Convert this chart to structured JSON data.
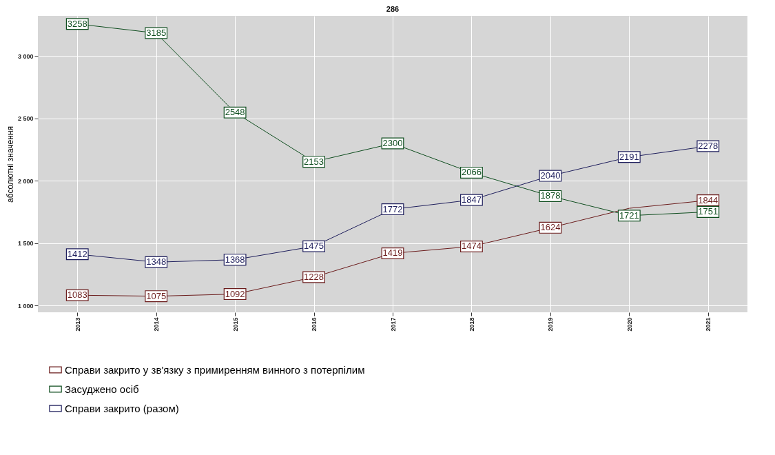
{
  "chart_data": {
    "type": "line",
    "title": "286",
    "ylabel": "абсолютні значення",
    "categories": [
      "2013",
      "2014",
      "2015",
      "2016",
      "2017",
      "2018",
      "2019",
      "2020",
      "2021"
    ],
    "series": [
      {
        "name": "Справи закрито у зв'язку з примиренням винного з потерпілим",
        "color": "#6b1c1c",
        "values": [
          1083,
          1075,
          1092,
          1228,
          1419,
          1474,
          1624,
          1780,
          1844
        ],
        "value_labels": [
          "1083",
          "1075",
          "1092",
          "1228",
          "1419",
          "1474",
          "1624",
          null,
          "1844"
        ]
      },
      {
        "name": "Засуджено осіб",
        "color": "#0e4d1e",
        "values": [
          3258,
          3185,
          2548,
          2153,
          2300,
          2066,
          1878,
          1721,
          1751
        ]
      },
      {
        "name": "Справи закрито (разом)",
        "color": "#1e1e5c",
        "values": [
          1412,
          1348,
          1368,
          1475,
          1772,
          1847,
          2040,
          2191,
          2278
        ]
      }
    ],
    "ylim": [
      946,
      3323
    ],
    "yticks": [
      {
        "value": 1000,
        "label": "1 000"
      },
      {
        "value": 1500,
        "label": "1 500"
      },
      {
        "value": 2000,
        "label": "2 000"
      },
      {
        "value": 2500,
        "label": "2 500"
      },
      {
        "value": 3000,
        "label": "3 000"
      }
    ],
    "data_labels": true,
    "grid": true,
    "legend": "bottom",
    "marker": "square"
  }
}
